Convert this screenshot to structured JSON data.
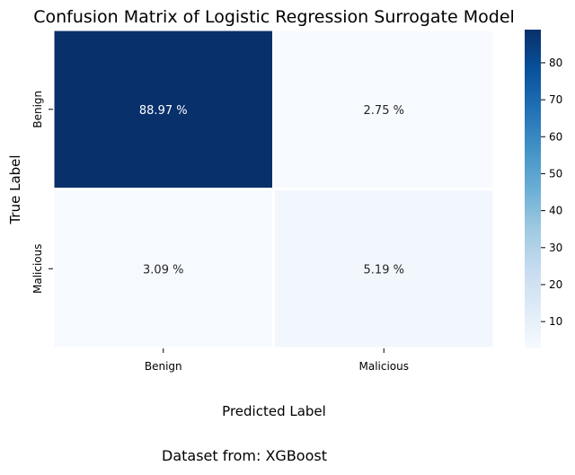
{
  "chart_data": {
    "type": "heatmap",
    "title": "Confusion Matrix of Logistic Regression Surrogate Model",
    "xlabel": "Predicted Label",
    "ylabel": "True Label",
    "x_categories": [
      "Benign",
      "Malicious"
    ],
    "y_categories": [
      "Benign",
      "Malicious"
    ],
    "values": [
      [
        88.97,
        2.75
      ],
      [
        3.09,
        5.19
      ]
    ],
    "cell_labels": [
      [
        "88.97 %",
        "2.75 %"
      ],
      [
        "3.09 %",
        "5.19 %"
      ]
    ],
    "colormap": "Blues",
    "colorbar": {
      "range": [
        2.75,
        88.97
      ],
      "ticks": [
        10,
        20,
        30,
        40,
        50,
        60,
        70,
        80
      ]
    }
  },
  "footer_text": "Dataset from: XGBoost"
}
